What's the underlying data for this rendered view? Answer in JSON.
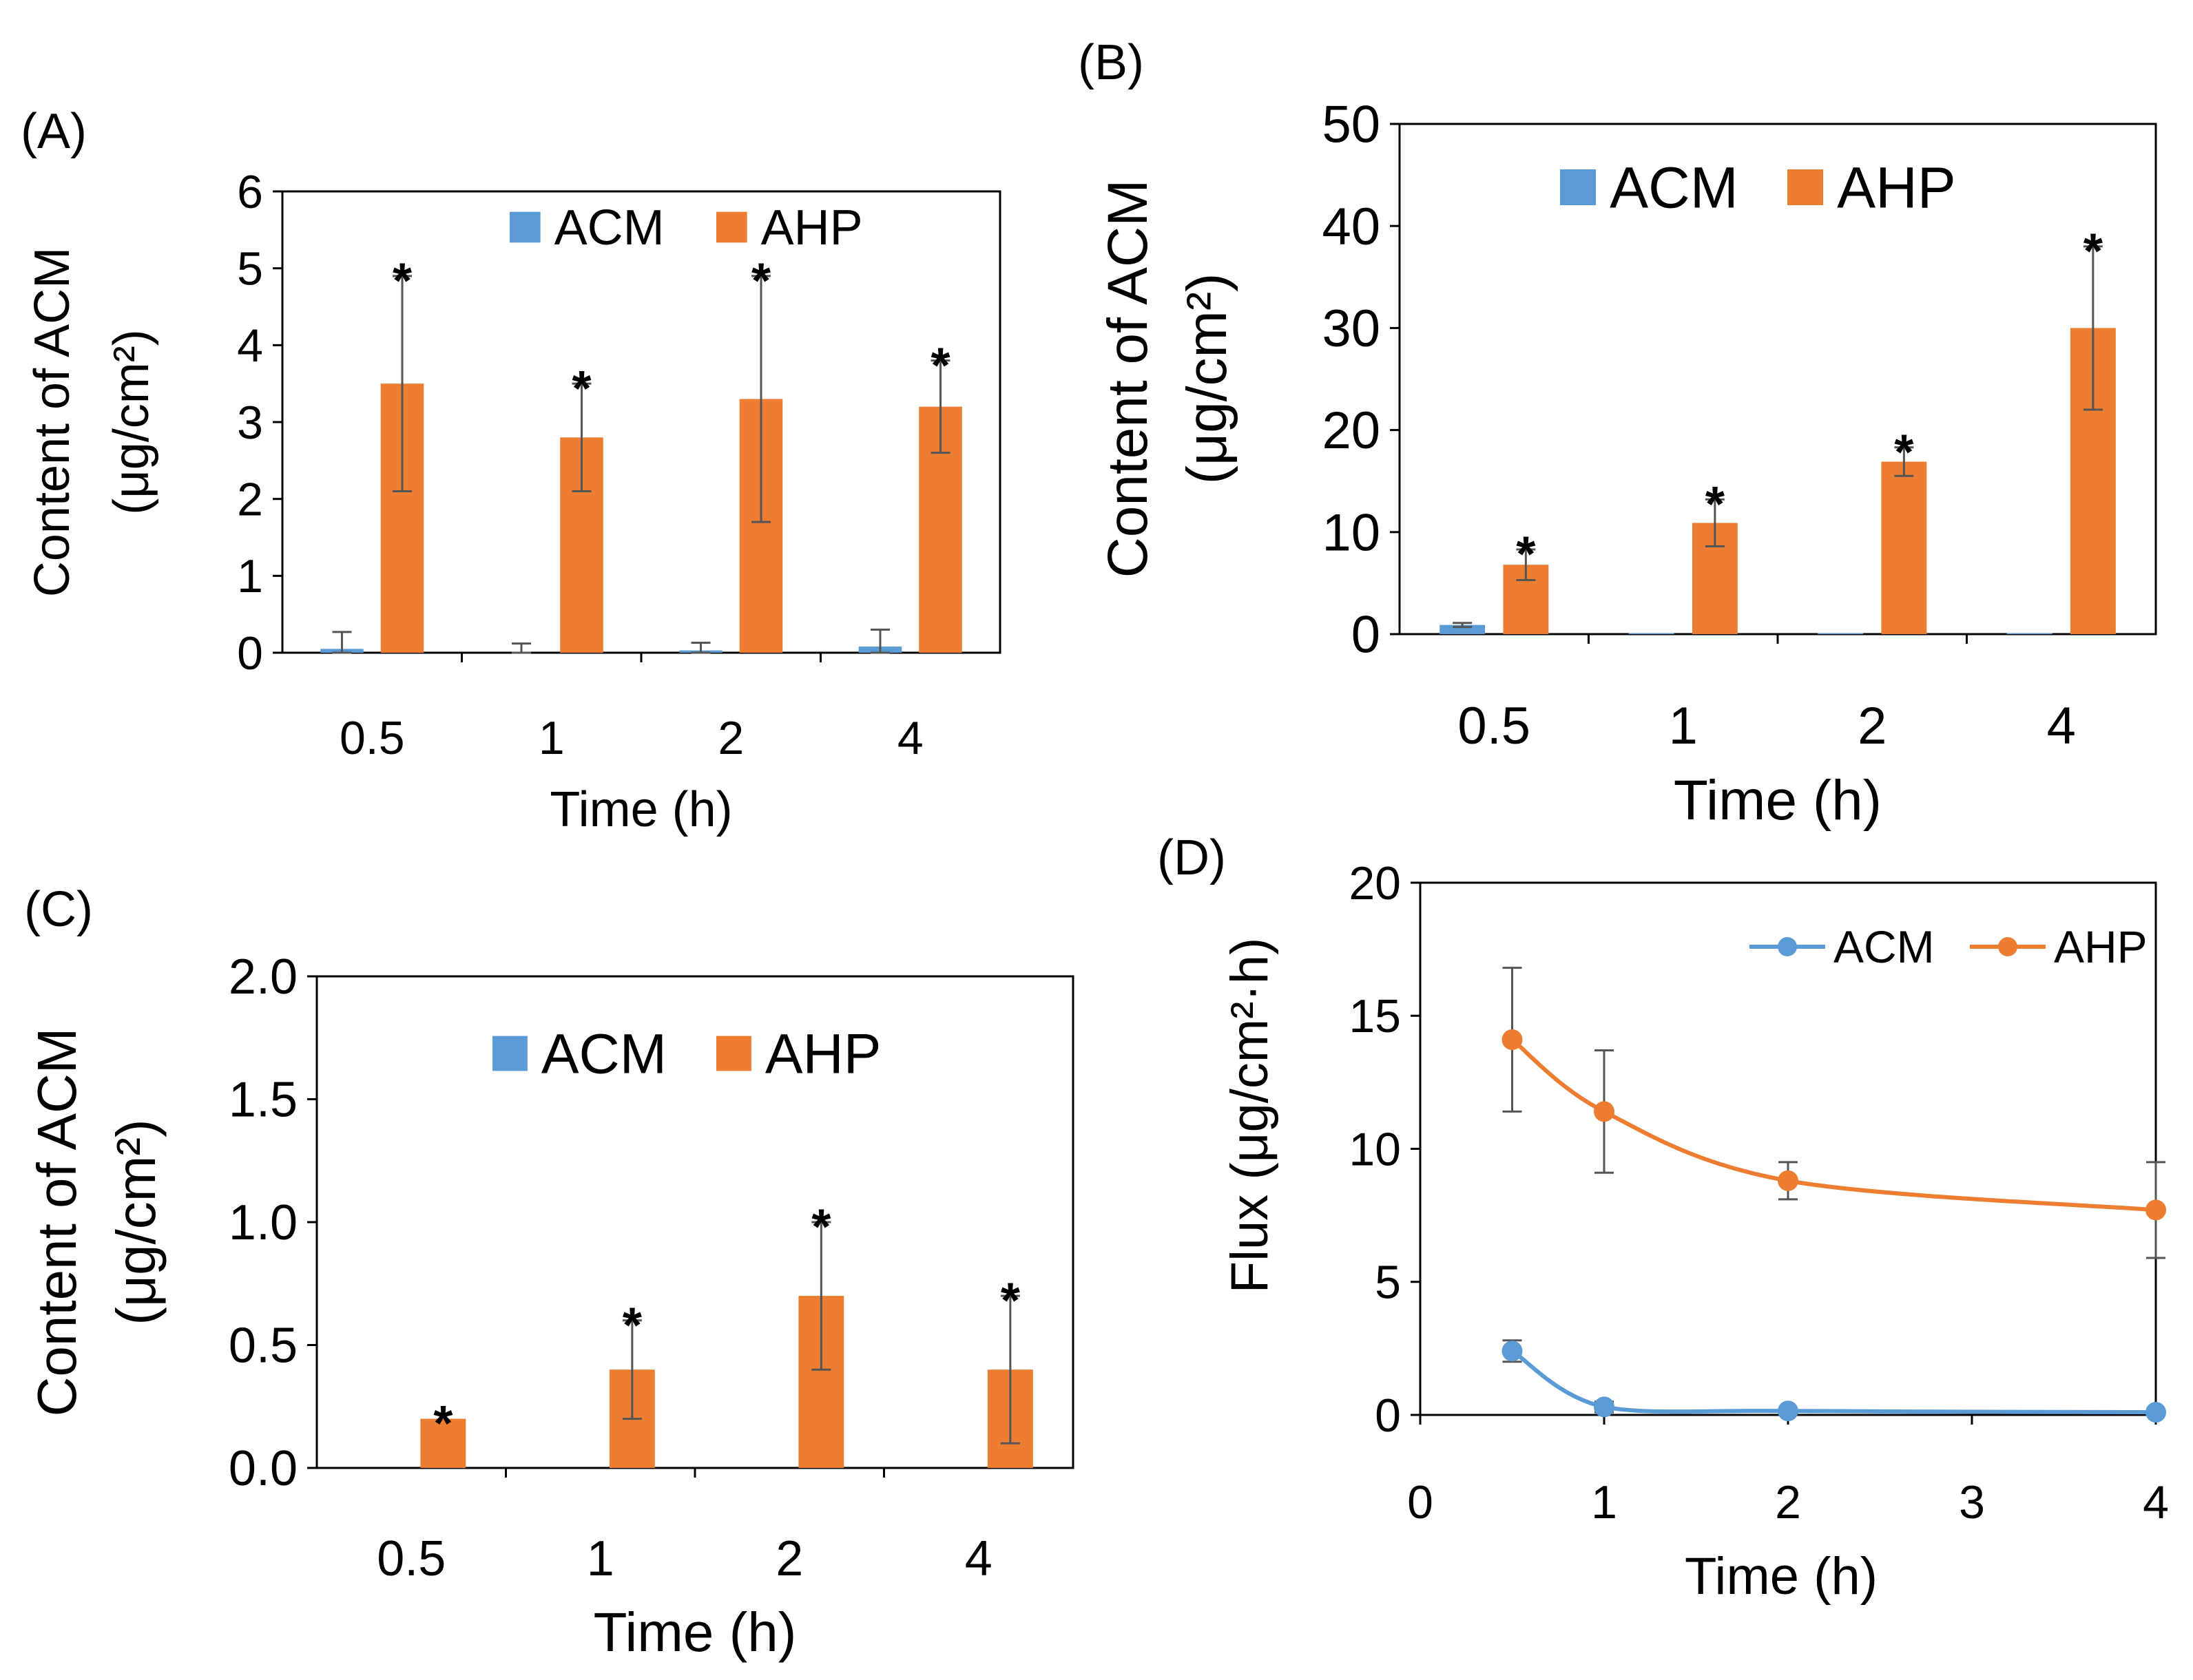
{
  "chart_data": [
    {
      "panel": "(A)",
      "type": "bar",
      "categories": [
        "0.5",
        "1",
        "2",
        "4"
      ],
      "series": [
        {
          "name": "ACM",
          "color": "#5B9BD5",
          "values": [
            0.05,
            0.0,
            0.03,
            0.08
          ],
          "errors": [
            0.22,
            0.12,
            0.1,
            0.22
          ],
          "sig": [
            false,
            false,
            false,
            false
          ]
        },
        {
          "name": "AHP",
          "color": "#ED7D31",
          "values": [
            3.5,
            2.8,
            3.3,
            3.2
          ],
          "errors": [
            1.4,
            0.7,
            1.6,
            0.6
          ],
          "sig": [
            true,
            true,
            true,
            true
          ]
        }
      ],
      "sig_mark": "*",
      "ylim": [
        0,
        6
      ],
      "yticks": [
        "0",
        "1",
        "2",
        "3",
        "4",
        "5",
        "6"
      ],
      "ylabel_line1": "Content of ACM",
      "ylabel_line2": "(μg/cm²)",
      "xlabel": "Time (h)",
      "legend_position": "top"
    },
    {
      "panel": "(B)",
      "type": "bar",
      "categories": [
        "0.5",
        "1",
        "2",
        "4"
      ],
      "series": [
        {
          "name": "ACM",
          "color": "#5B9BD5",
          "values": [
            0.9,
            0.1,
            0.1,
            0.1
          ],
          "errors": [
            0.2,
            0.0,
            0.0,
            0.0
          ],
          "sig": [
            false,
            false,
            false,
            false
          ]
        },
        {
          "name": "AHP",
          "color": "#ED7D31",
          "values": [
            6.8,
            10.9,
            16.9,
            30.0
          ],
          "errors": [
            1.5,
            2.3,
            1.4,
            8.0
          ],
          "sig": [
            true,
            true,
            true,
            true
          ]
        }
      ],
      "sig_mark": "*",
      "ylim": [
        0,
        50
      ],
      "yticks": [
        "0",
        "10",
        "20",
        "30",
        "40",
        "50"
      ],
      "ylabel_line1": "Content of ACM",
      "ylabel_line2": "(μg/cm²)",
      "xlabel": "Time (h)",
      "legend_position": "top"
    },
    {
      "panel": "(C)",
      "type": "bar",
      "categories": [
        "0.5",
        "1",
        "2",
        "4"
      ],
      "series": [
        {
          "name": "ACM",
          "color": "#5B9BD5",
          "values": [
            0,
            0,
            0,
            0
          ],
          "errors": [
            0,
            0,
            0,
            0
          ],
          "sig": [
            false,
            false,
            false,
            false
          ]
        },
        {
          "name": "AHP",
          "color": "#ED7D31",
          "values": [
            0.2,
            0.4,
            0.7,
            0.4
          ],
          "errors": [
            0.0,
            0.2,
            0.3,
            0.3
          ],
          "sig": [
            true,
            true,
            true,
            true
          ]
        }
      ],
      "sig_mark": "*",
      "ylim": [
        0,
        2
      ],
      "yticks": [
        "0.0",
        "0.5",
        "1.0",
        "1.5",
        "2.0"
      ],
      "ylabel_line1": "Content of ACM",
      "ylabel_line2": "(μg/cm²)",
      "xlabel": "Time (h)",
      "legend_position": "top"
    },
    {
      "panel": "(D)",
      "type": "line",
      "x": [
        0.5,
        1,
        2,
        4
      ],
      "series": [
        {
          "name": "ACM",
          "color": "#5B9BD5",
          "values": [
            2.4,
            0.3,
            0.15,
            0.1
          ],
          "errors": [
            0.4,
            0.2,
            0.1,
            0.05
          ]
        },
        {
          "name": "AHP",
          "color": "#ED7D31",
          "values": [
            14.1,
            11.4,
            8.8,
            7.7
          ],
          "errors": [
            2.7,
            2.3,
            0.7,
            1.8
          ]
        }
      ],
      "xlim": [
        0,
        4
      ],
      "xticks": [
        "0",
        "1",
        "2",
        "3",
        "4"
      ],
      "ylim": [
        0,
        20
      ],
      "yticks": [
        "0",
        "5",
        "10",
        "15",
        "20"
      ],
      "ylabel": "Flux (μg/cm²·h)",
      "xlabel": "Time (h)",
      "legend_position": "top-right",
      "smooth": true
    }
  ]
}
